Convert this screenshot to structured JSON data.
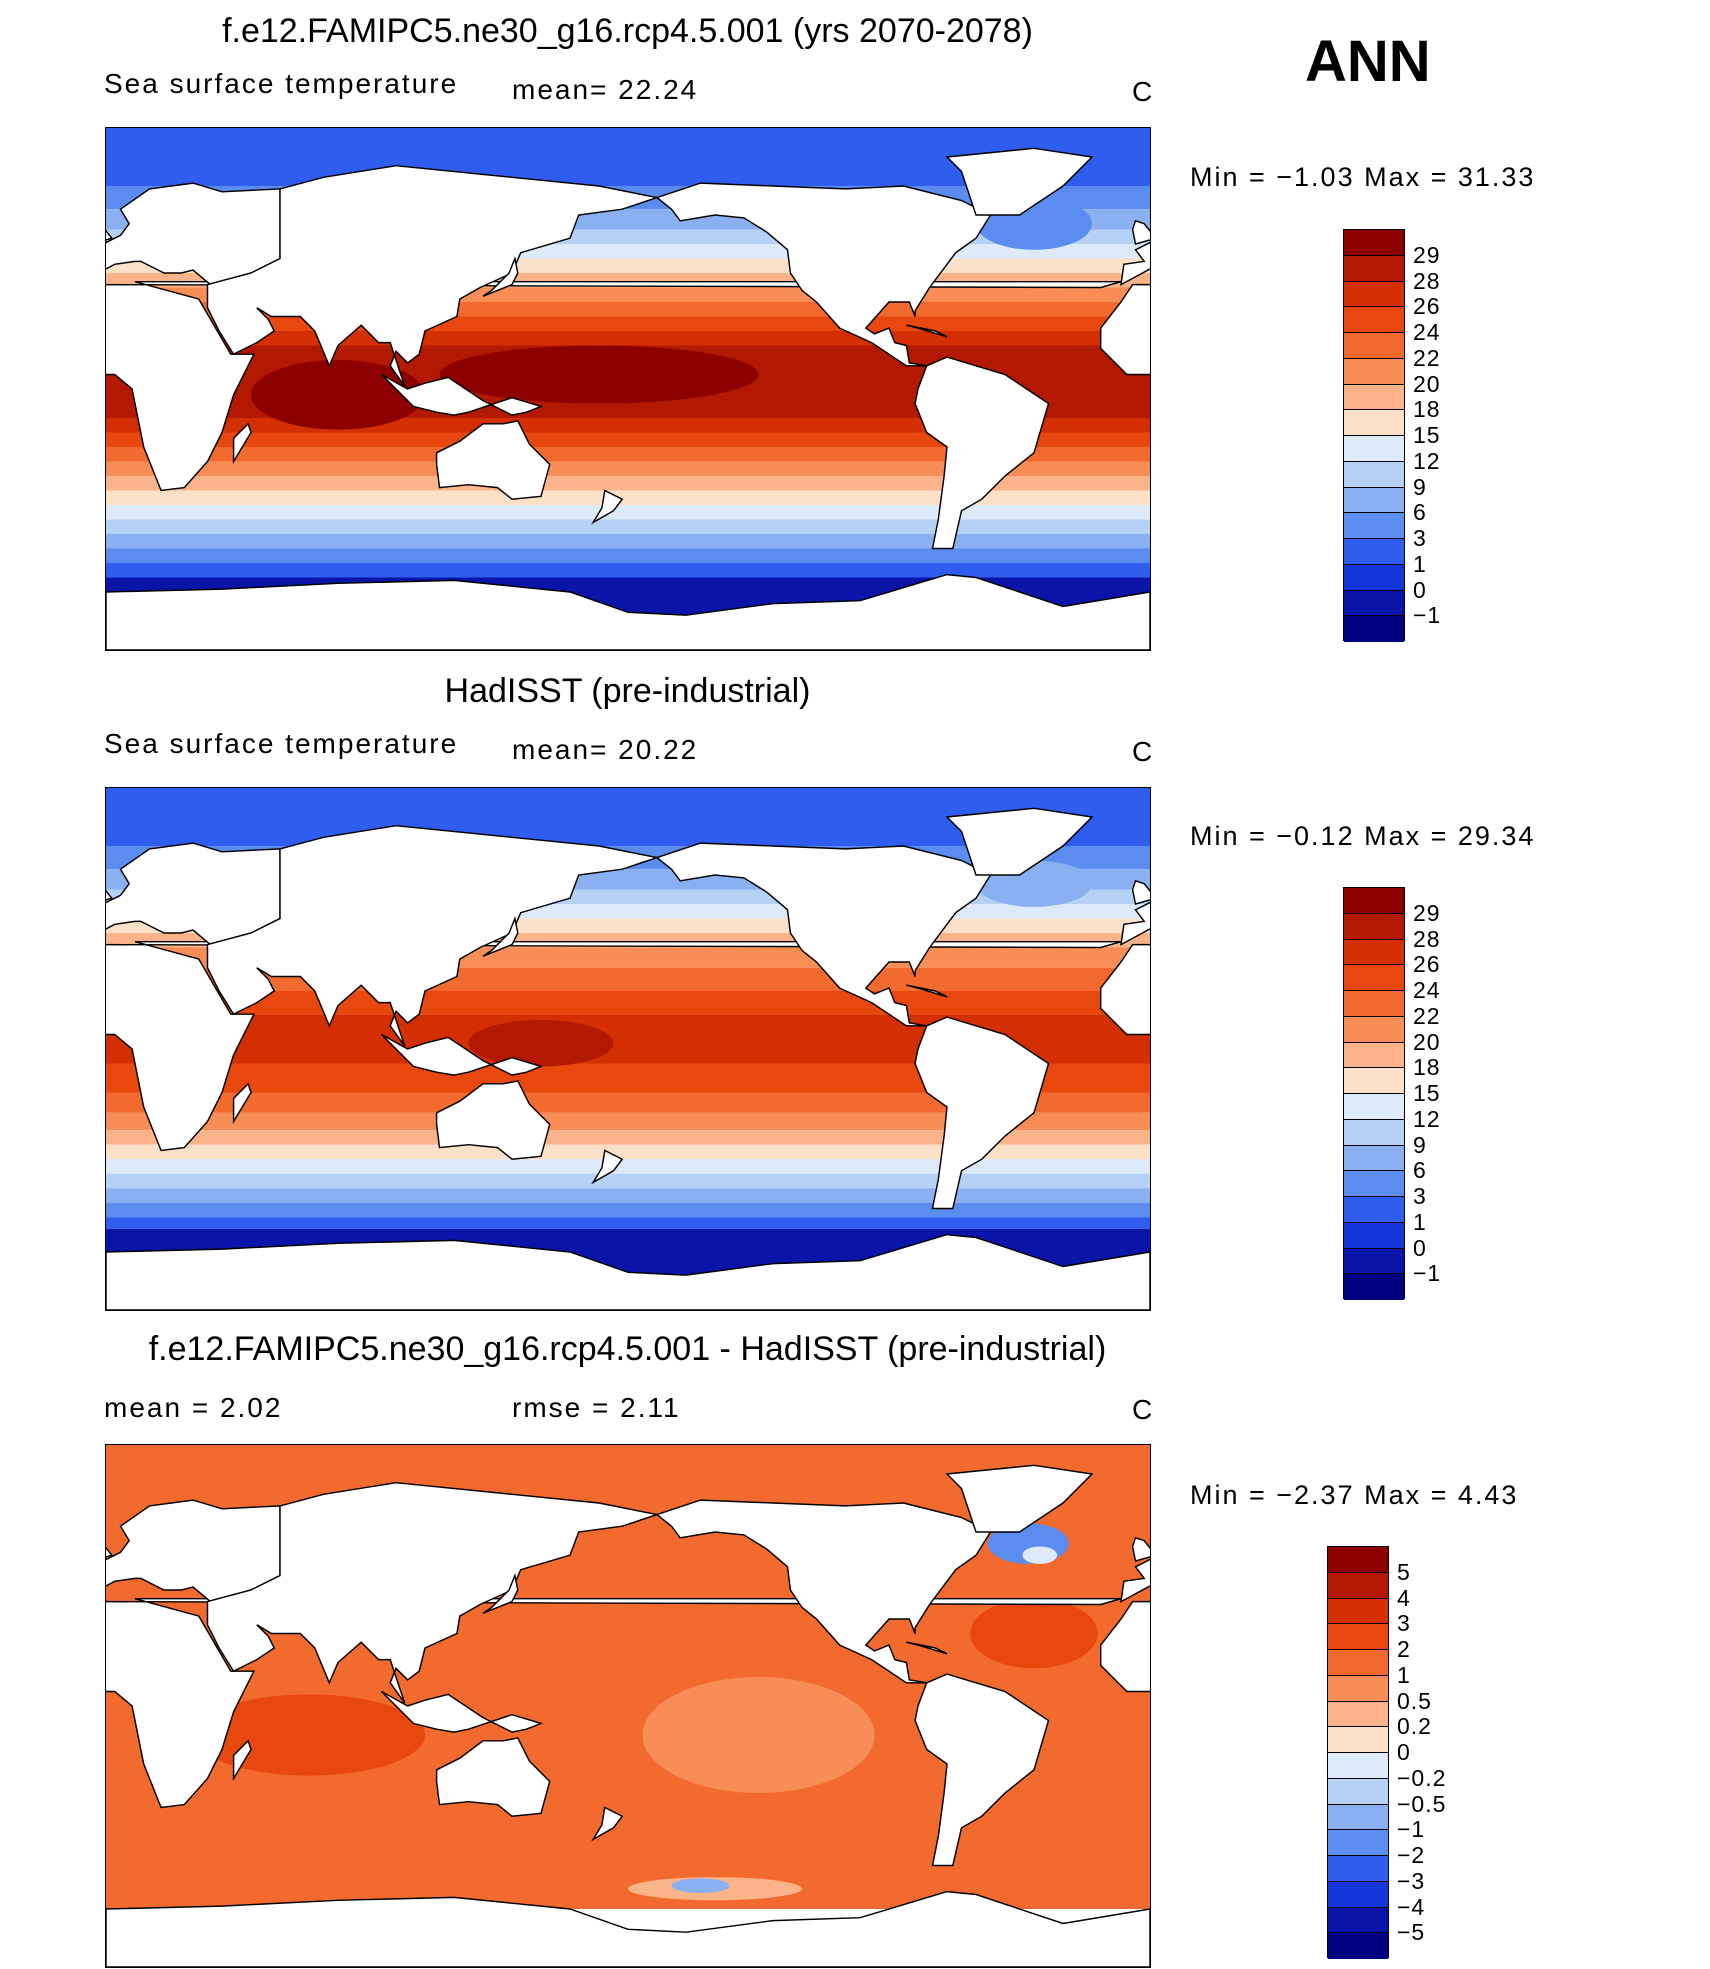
{
  "season": "ANN",
  "panels": [
    {
      "title": "f.e12.FAMIPC5.ne30_g16.rcp4.5.001 (yrs 2070-2078)",
      "left_label": "Sea surface temperature",
      "mid_label": "mean=   22.24",
      "unit": "C",
      "minmax": "Min  =   −1.03  Max  =   31.33",
      "field": "abs_future",
      "colorbar": {
        "labels": [
          "29",
          "28",
          "26",
          "24",
          "22",
          "20",
          "18",
          "15",
          "12",
          "9",
          "6",
          "3",
          "1",
          "0",
          "−1"
        ],
        "colors": [
          "#8c0000",
          "#b31800",
          "#d42f00",
          "#e8470e",
          "#f26a2e",
          "#f88d55",
          "#fbb38a",
          "#fde0c8",
          "#dceafa",
          "#b5d1f6",
          "#8ab0f2",
          "#5b8cf0",
          "#2f5df0",
          "#1236d8",
          "#0a14a8",
          "#000080"
        ]
      }
    },
    {
      "title": "HadISST (pre-industrial)",
      "left_label": "Sea surface temperature",
      "mid_label": "mean=   20.22",
      "unit": "C",
      "minmax": "Min  =   −0.12  Max  =   29.34",
      "field": "abs_obs",
      "colorbar": {
        "labels": [
          "29",
          "28",
          "26",
          "24",
          "22",
          "20",
          "18",
          "15",
          "12",
          "9",
          "6",
          "3",
          "1",
          "0",
          "−1"
        ],
        "colors": [
          "#8c0000",
          "#b31800",
          "#d42f00",
          "#e8470e",
          "#f26a2e",
          "#f88d55",
          "#fbb38a",
          "#fde0c8",
          "#dceafa",
          "#b5d1f6",
          "#8ab0f2",
          "#5b8cf0",
          "#2f5df0",
          "#1236d8",
          "#0a14a8",
          "#000080"
        ]
      }
    },
    {
      "title": "f.e12.FAMIPC5.ne30_g16.rcp4.5.001 - HadISST (pre-industrial)",
      "left_label": "mean =     2.02",
      "mid_label": "rmse =     2.11",
      "unit": "C",
      "minmax": "Min  =   −2.37  Max  =    4.43",
      "field": "diff",
      "colorbar": {
        "labels": [
          "5",
          "4",
          "3",
          "2",
          "1",
          "0.5",
          "0.2",
          "0",
          "−0.2",
          "−0.5",
          "−1",
          "−2",
          "−3",
          "−4",
          "−5"
        ],
        "colors": [
          "#8c0000",
          "#b31800",
          "#d42f00",
          "#e8470e",
          "#f26a2e",
          "#f88d55",
          "#fbb38a",
          "#fde0c8",
          "#dceafa",
          "#b5d1f6",
          "#8ab0f2",
          "#5b8cf0",
          "#2f5df0",
          "#1236d8",
          "#0a14a8",
          "#000080"
        ]
      }
    }
  ]
}
